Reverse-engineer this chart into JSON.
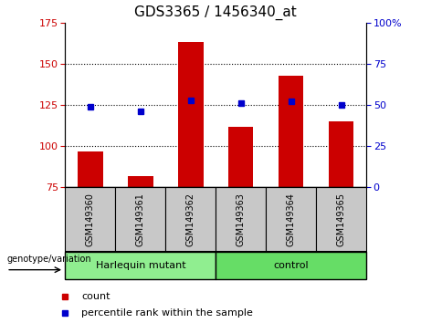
{
  "title": "GDS3365 / 1456340_at",
  "samples": [
    "GSM149360",
    "GSM149361",
    "GSM149362",
    "GSM149363",
    "GSM149364",
    "GSM149365"
  ],
  "count_values": [
    97,
    82,
    163,
    112,
    143,
    115
  ],
  "percentile_values": [
    49,
    46,
    53,
    51,
    52,
    50
  ],
  "ylim_left": [
    75,
    175
  ],
  "ylim_right": [
    0,
    100
  ],
  "yticks_left": [
    75,
    100,
    125,
    150,
    175
  ],
  "yticks_right": [
    0,
    25,
    50,
    75,
    100
  ],
  "bar_color": "#cc0000",
  "dot_color": "#0000cc",
  "groups": [
    {
      "label": "Harlequin mutant",
      "indices": [
        0,
        1,
        2
      ],
      "color": "#90ee90"
    },
    {
      "label": "control",
      "indices": [
        3,
        4,
        5
      ],
      "color": "#66dd66"
    }
  ],
  "group_label": "genotype/variation",
  "legend_count": "count",
  "legend_pct": "percentile rank within the sample",
  "bg_label": "#c8c8c8",
  "title_fontsize": 11,
  "tick_fontsize": 8,
  "bar_width": 0.5
}
